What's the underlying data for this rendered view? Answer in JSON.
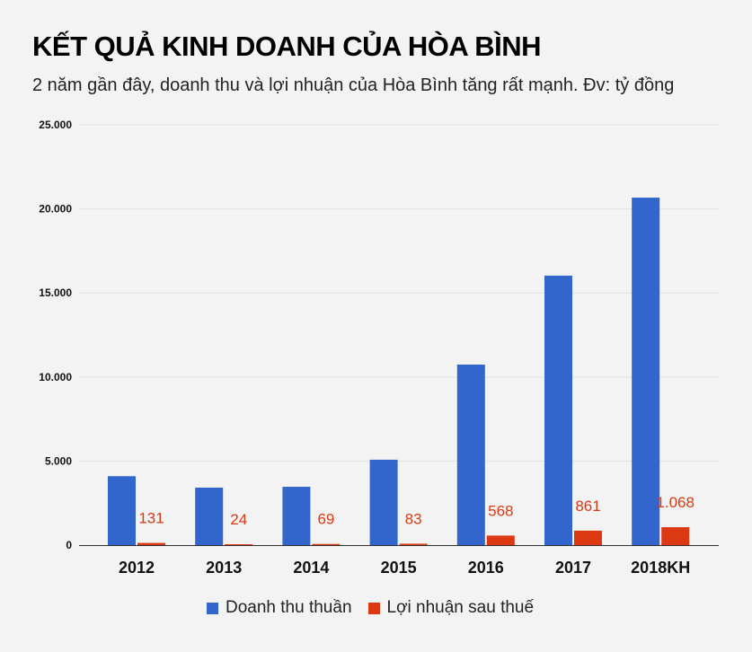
{
  "title": "KẾT QUẢ KINH DOANH CỦA HÒA BÌNH",
  "subtitle": "2 năm gần đây, doanh thu và lợi nhuận của Hòa Bình tăng rất mạnh. Đv: tỷ đồng",
  "chart_data": {
    "type": "bar",
    "categories": [
      "2012",
      "2013",
      "2014",
      "2015",
      "2016",
      "2017",
      "2018KH"
    ],
    "series": [
      {
        "name": "Doanh thu thuần",
        "color": "#3366cc",
        "values": [
          4100,
          3420,
          3470,
          5080,
          10740,
          16030,
          20670
        ]
      },
      {
        "name": "Lợi nhuận sau thuế",
        "color": "#dc3912",
        "values": [
          131,
          24,
          69,
          83,
          568,
          861,
          1068
        ],
        "data_labels": [
          "131",
          "24",
          "69",
          "83",
          "568",
          "861",
          "1.068"
        ]
      }
    ],
    "ylim": [
      0,
      25000
    ],
    "yticks": [
      "0",
      "5.000",
      "10.000",
      "15.000",
      "20.000",
      "25.000"
    ],
    "grid": true,
    "legend": "bottom"
  }
}
